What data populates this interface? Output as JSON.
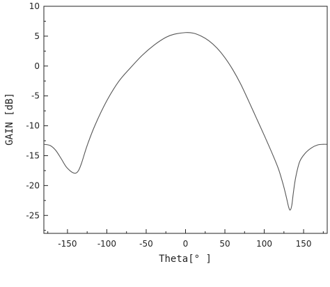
{
  "chart_data": {
    "type": "line",
    "title": "",
    "xlabel": "Theta[° ]",
    "ylabel": "GAIN [dB]",
    "xlim": [
      -180,
      180
    ],
    "ylim": [
      -28,
      10
    ],
    "xticks": [
      -150,
      -100,
      -50,
      0,
      50,
      100,
      150
    ],
    "xtick_labels": [
      "-150",
      "-100",
      "-50",
      "0",
      "50",
      "100",
      "150"
    ],
    "yticks": [
      10,
      5,
      0,
      -5,
      -10,
      -15,
      -20,
      -25
    ],
    "ytick_labels": [
      "10",
      "5",
      "0",
      "-5",
      "-10",
      "-15",
      "-20",
      "-25"
    ],
    "grid": false,
    "legend": "none",
    "series": [
      {
        "color": "#555555",
        "x": [
          -180,
          -172,
          -165,
          -158,
          -152,
          -146,
          -142,
          -139,
          -136,
          -132,
          -125,
          -115,
          -100,
          -85,
          -70,
          -55,
          -40,
          -25,
          -15,
          0,
          10,
          20,
          30,
          40,
          50,
          60,
          70,
          80,
          90,
          100,
          110,
          118,
          124,
          128,
          131,
          133,
          135,
          137,
          140,
          145,
          152,
          160,
          168,
          175,
          180
        ],
        "y": [
          -13.1,
          -13.3,
          -14.1,
          -15.5,
          -16.8,
          -17.6,
          -17.9,
          -17.9,
          -17.5,
          -16.2,
          -13.3,
          -9.9,
          -5.8,
          -2.6,
          -0.3,
          1.8,
          3.5,
          4.8,
          5.3,
          5.6,
          5.5,
          5.0,
          4.2,
          3.0,
          1.4,
          -0.6,
          -3.0,
          -5.8,
          -8.7,
          -11.6,
          -14.6,
          -17.2,
          -19.8,
          -21.9,
          -23.6,
          -24.1,
          -23.3,
          -21.2,
          -18.6,
          -16.0,
          -14.6,
          -13.7,
          -13.2,
          -13.1,
          -13.1
        ]
      }
    ]
  }
}
